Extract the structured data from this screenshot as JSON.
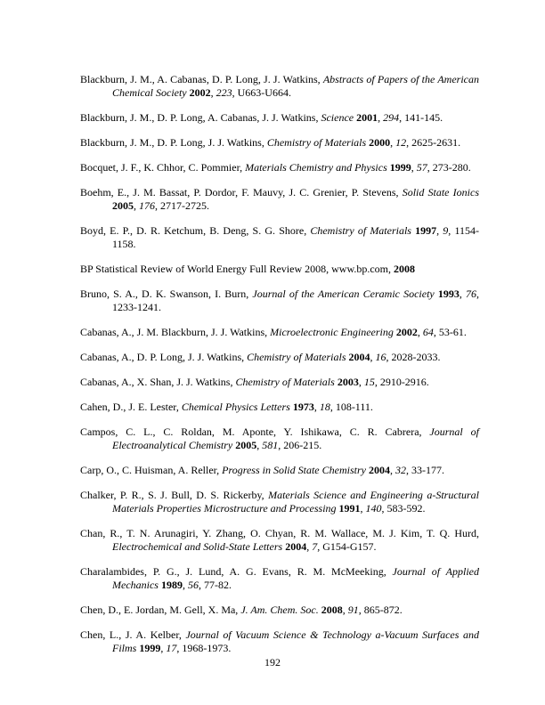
{
  "page_number": "192",
  "references": [
    {
      "authors": "Blackburn, J. M., A. Cabanas, D. P. Long, J. J. Watkins, ",
      "journal": "Abstracts of Papers of the American Chemical Society",
      "year": "2002",
      "volume": "223",
      "pages": "U663-U664."
    },
    {
      "authors": "Blackburn, J. M., D. P. Long, A. Cabanas, J. J. Watkins, ",
      "journal": "Science",
      "year": "2001",
      "volume": "294",
      "pages": "141-145."
    },
    {
      "authors": "Blackburn, J. M., D. P. Long, J. J. Watkins, ",
      "journal": "Chemistry of Materials",
      "year": "2000",
      "volume": "12",
      "pages": "2625-2631."
    },
    {
      "authors": "Bocquet, J. F., K. Chhor, C. Pommier, ",
      "journal": "Materials Chemistry and Physics",
      "year": "1999",
      "volume": "57",
      "pages": "273-280."
    },
    {
      "authors": "Boehm, E., J. M. Bassat, P. Dordor, F. Mauvy, J. C. Grenier, P. Stevens, ",
      "journal": "Solid State Ionics",
      "year": "2005",
      "volume": "176",
      "pages": "2717-2725."
    },
    {
      "authors": "Boyd, E. P., D. R. Ketchum, B. Deng, S. G. Shore, ",
      "journal": "Chemistry of Materials",
      "year": "1997",
      "volume": "9",
      "pages": "1154-1158."
    },
    {
      "plain": "BP Statistical Review of World Energy Full Review 2008, www.bp.com, ",
      "year": "2008"
    },
    {
      "authors": "Bruno, S. A., D. K. Swanson, I. Burn, ",
      "journal": "Journal of the American Ceramic Society",
      "year": "1993",
      "volume": "76",
      "pages": "1233-1241."
    },
    {
      "authors": "Cabanas, A., J. M. Blackburn, J. J. Watkins, ",
      "journal": "Microelectronic Engineering",
      "year": "2002",
      "volume": "64",
      "pages": "53-61."
    },
    {
      "authors": "Cabanas, A., D. P. Long, J. J. Watkins, ",
      "journal": "Chemistry of Materials",
      "year": "2004",
      "volume": "16",
      "pages": "2028-2033."
    },
    {
      "authors": "Cabanas, A., X. Shan, J. J. Watkins, ",
      "journal": "Chemistry of Materials",
      "year": "2003",
      "volume": "15",
      "pages": "2910-2916."
    },
    {
      "authors": "Cahen, D., J. E. Lester, ",
      "journal": "Chemical Physics Letters",
      "year": "1973",
      "volume": "18",
      "pages": "108-111."
    },
    {
      "authors": "Campos, C. L., C. Roldan, M. Aponte, Y. Ishikawa, C. R. Cabrera, ",
      "journal": "Journal of Electroanalytical Chemistry",
      "year": "2005",
      "volume": "581",
      "pages": "206-215."
    },
    {
      "authors": "Carp, O., C. Huisman, A. Reller, ",
      "journal": "Progress in Solid State Chemistry",
      "year": "2004",
      "volume": "32",
      "pages": "33-177."
    },
    {
      "authors": "Chalker, P. R., S. J. Bull, D. S. Rickerby, ",
      "journal": "Materials Science and Engineering a-Structural Materials Properties Microstructure and Processing",
      "year": "1991",
      "volume": "140",
      "pages": "583-592."
    },
    {
      "authors": "Chan, R., T. N. Arunagiri, Y. Zhang, O. Chyan, R. M. Wallace, M. J. Kim, T. Q. Hurd, ",
      "journal": "Electrochemical and Solid-State Letters",
      "year": "2004",
      "volume": "7",
      "pages": "G154-G157."
    },
    {
      "authors": "Charalambides, P. G., J. Lund, A. G. Evans, R. M. McMeeking, ",
      "journal": "Journal of Applied Mechanics",
      "year": "1989",
      "volume": "56",
      "pages": "77-82."
    },
    {
      "authors": "Chen, D., E. Jordan, M. Gell, X. Ma, ",
      "journal": "J. Am. Chem. Soc.",
      "year": "2008",
      "volume": "91",
      "pages": "865-872."
    },
    {
      "authors": "Chen, L., J. A. Kelber, ",
      "journal": "Journal of Vacuum Science & Technology a-Vacuum Surfaces and Films",
      "year": "1999",
      "volume": "17",
      "pages": "1968-1973."
    }
  ]
}
